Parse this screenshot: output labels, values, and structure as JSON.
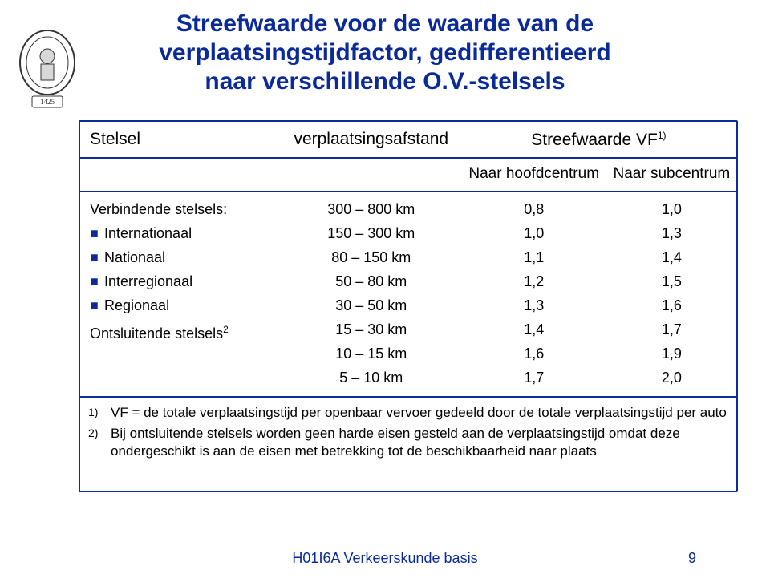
{
  "title_line1": "Streefwaarde voor de waarde van de",
  "title_line2": "verplaatsingstijdfactor, gedifferentieerd",
  "title_line3": "naar verschillende O.V.-stelsels",
  "table": {
    "header": {
      "stelsel": "Stelsel",
      "afstand": "verplaatsingsafstand",
      "streefwaarde": "Streefwaarde VF",
      "streefwaarde_sup": "1)",
      "hoofd": "Naar hoofdcentrum",
      "sub": "Naar subcentrum"
    },
    "rows": [
      {
        "label": "Verbindende stelsels:",
        "bullet": false,
        "afstand": "300 – 800 km",
        "hoofd": "0,8",
        "sub": "1,0"
      },
      {
        "label": "Internationaal",
        "bullet": true,
        "afstand": "150 – 300 km",
        "hoofd": "1,0",
        "sub": "1,3"
      },
      {
        "label": "Nationaal",
        "bullet": true,
        "afstand": "80 – 150 km",
        "hoofd": "1,1",
        "sub": "1,4"
      },
      {
        "label": "Interregionaal",
        "bullet": true,
        "afstand": "50 – 80 km",
        "hoofd": "1,2",
        "sub": "1,5"
      },
      {
        "label": "Regionaal",
        "bullet": true,
        "afstand": "30 – 50 km",
        "hoofd": "1,3",
        "sub": "1,6"
      },
      {
        "label": "Ontsluitende stelsels²",
        "bullet": false,
        "afstand": "15 – 30 km",
        "hoofd": "1,4",
        "sub": "1,7"
      },
      {
        "label": "",
        "bullet": false,
        "afstand": "10 – 15 km",
        "hoofd": "1,6",
        "sub": "1,9"
      },
      {
        "label": "",
        "bullet": false,
        "afstand": "5 – 10 km",
        "hoofd": "1,7",
        "sub": "2,0"
      }
    ],
    "footnotes": [
      {
        "num": "1)",
        "txt": "VF = de totale verplaatsingstijd per openbaar vervoer gedeeld door de totale verplaatsingstijd per auto"
      },
      {
        "num": "2)",
        "txt": "Bij ontsluitende stelsels worden geen harde eisen gesteld aan de verplaatsingstijd omdat deze ondergeschikt is aan de eisen met betrekking tot de beschikbaarheid naar plaats"
      }
    ]
  },
  "footer": {
    "main": "H01I6A Verkeerskunde basis",
    "page": "9"
  },
  "style": {
    "title_color": "#0a2a9a",
    "border_color": "#0c2b98",
    "text_color": "#000000",
    "background": "#ffffff",
    "crest_stroke": "#333333",
    "crest_fill": "#dddddd"
  }
}
